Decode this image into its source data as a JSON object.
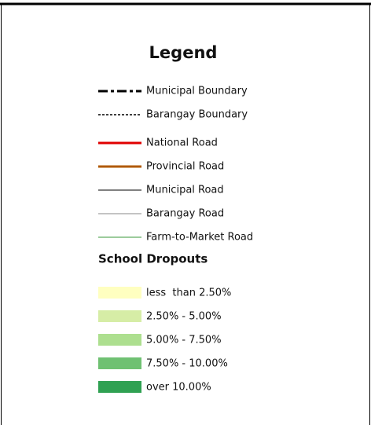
{
  "legend": {
    "title": "Legend",
    "line_items": [
      {
        "label": "Municipal Boundary"
      },
      {
        "label": "Barangay Boundary"
      },
      {
        "label": "National Road"
      },
      {
        "label": "Provincial Road"
      },
      {
        "label": "Municipal Road"
      },
      {
        "label": "Barangay Road"
      },
      {
        "label": "Farm-to-Market Road"
      }
    ],
    "section_title": "School Dropouts",
    "fill_items": [
      {
        "label": "less  than 2.50%"
      },
      {
        "label": "2.50% - 5.00%"
      },
      {
        "label": "5.00% - 7.50%"
      },
      {
        "label": "7.50% - 10.00%"
      },
      {
        "label": "over 10.00%"
      }
    ]
  }
}
